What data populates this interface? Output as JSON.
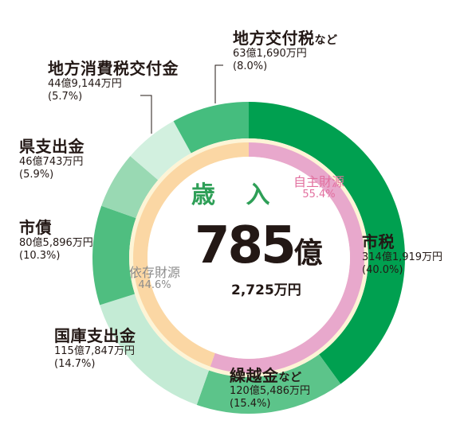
{
  "chart_data": {
    "type": "pie",
    "title": "歳 入",
    "total": {
      "value_main": "785",
      "unit_main": "億",
      "value_sub": "2,725万円"
    },
    "outer_ring": [
      {
        "name": "市税",
        "suffix": "",
        "amount": "314億1,919万円",
        "percent_label": "(40.0%)",
        "value": 40.0,
        "color": "#00a050"
      },
      {
        "name": "繰越金",
        "suffix": "など",
        "amount": "120億5,486万円",
        "percent_label": "(15.4%)",
        "value": 15.4,
        "color": "#5cc48a"
      },
      {
        "name": "国庫支出金",
        "suffix": "",
        "amount": "115億7,847万円",
        "percent_label": "(14.7%)",
        "value": 14.7,
        "color": "#c4ebd5"
      },
      {
        "name": "市債",
        "suffix": "",
        "amount": "80億5,896万円",
        "percent_label": "(10.3%)",
        "value": 10.3,
        "color": "#4fbe80"
      },
      {
        "name": "県支出金",
        "suffix": "",
        "amount": "46億743万円",
        "percent_label": "(5.9%)",
        "value": 5.9,
        "color": "#99d9b3"
      },
      {
        "name": "地方消費税交付金",
        "suffix": "",
        "amount": "44億9,144万円",
        "percent_label": "(5.7%)",
        "value": 5.7,
        "color": "#d2f0df"
      },
      {
        "name": "地方交付税",
        "suffix": "など",
        "amount": "63億1,690万円",
        "percent_label": "(8.0%)",
        "value": 8.0,
        "color": "#45bd7e"
      }
    ],
    "inner_ring": [
      {
        "name": "自主財源",
        "percent_label": "55.4%",
        "value": 55.4,
        "color": "#e8a8cc",
        "text_color": "#e2709f"
      },
      {
        "name": "依存財源",
        "percent_label": "44.6%",
        "value": 44.6,
        "color": "#fbd7a4",
        "text_color": "#8c8c8c"
      }
    ]
  }
}
